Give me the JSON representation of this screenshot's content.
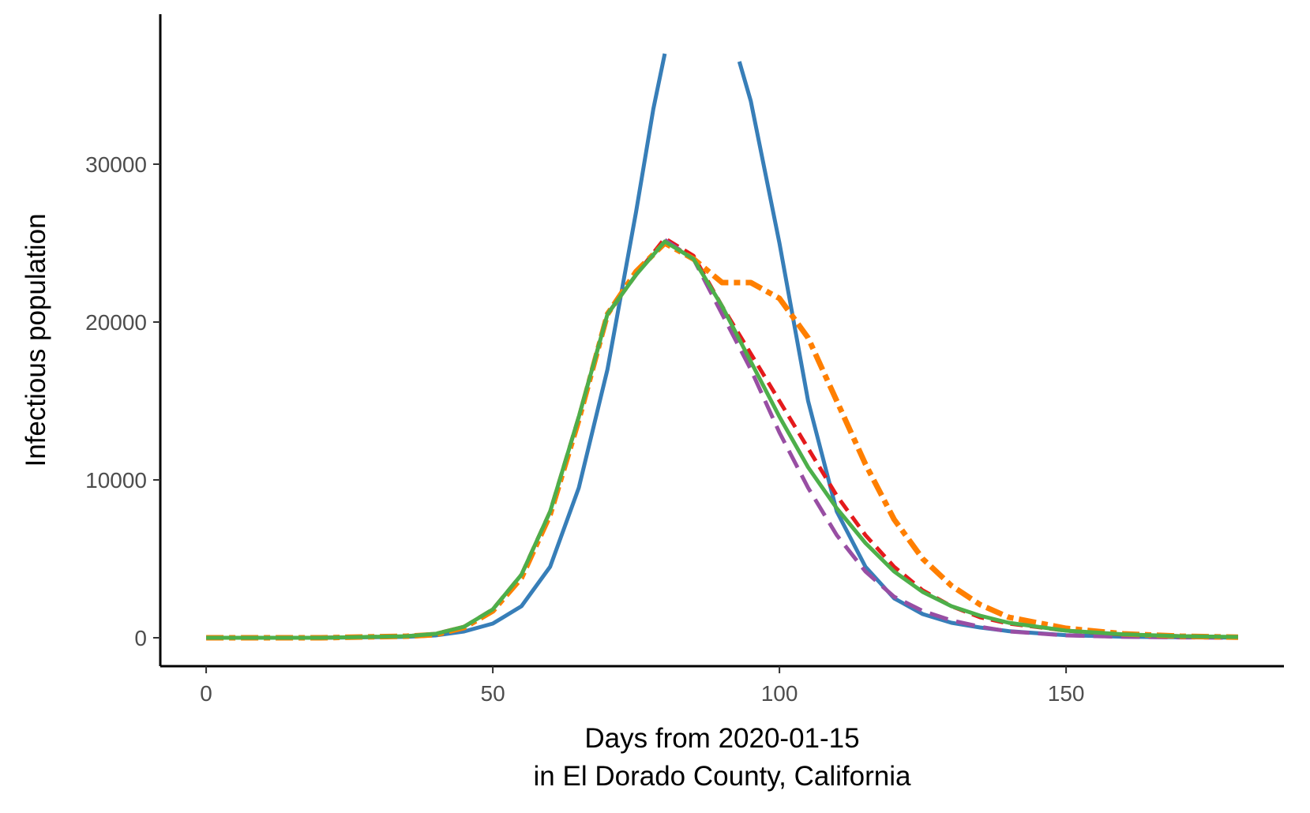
{
  "chart_data": {
    "type": "line",
    "xlabel_lines": [
      "Days from 2020-01-15",
      "in El Dorado County, California"
    ],
    "ylabel": "Infectious population",
    "xlim": [
      -8,
      188
    ],
    "ylim": [
      -1800,
      39500
    ],
    "x_ticks": [
      0,
      50,
      100,
      150
    ],
    "y_ticks": [
      0,
      10000,
      20000,
      30000
    ],
    "x_tick_labels": [
      "0",
      "50",
      "100",
      "150"
    ],
    "y_tick_labels": [
      "0",
      "10000",
      "20000",
      "30000"
    ],
    "grid": false,
    "legend": "none",
    "series": [
      {
        "color": "#377EB8",
        "dash": "solid",
        "width": 5,
        "segments": [
          [
            [
              0,
              0
            ],
            [
              20,
              0
            ],
            [
              35,
              60
            ],
            [
              40,
              150
            ],
            [
              45,
              400
            ],
            [
              50,
              900
            ],
            [
              55,
              2000
            ],
            [
              60,
              4500
            ],
            [
              65,
              9500
            ],
            [
              70,
              17000
            ],
            [
              75,
              27000
            ],
            [
              78,
              33500
            ],
            [
              80,
              37000
            ]
          ],
          [
            [
              93,
              36500
            ],
            [
              95,
              34000
            ],
            [
              100,
              25000
            ],
            [
              105,
              15000
            ],
            [
              110,
              8000
            ],
            [
              115,
              4500
            ],
            [
              120,
              2500
            ],
            [
              125,
              1500
            ],
            [
              130,
              950
            ],
            [
              135,
              650
            ],
            [
              140,
              420
            ],
            [
              150,
              160
            ],
            [
              160,
              70
            ],
            [
              170,
              30
            ],
            [
              180,
              10
            ]
          ]
        ]
      },
      {
        "color": "#E41A1C",
        "dash": "16 9",
        "width": 5,
        "segments": [
          [
            [
              0,
              0
            ],
            [
              20,
              0
            ],
            [
              35,
              100
            ],
            [
              40,
              250
            ],
            [
              45,
              700
            ],
            [
              50,
              1800
            ],
            [
              55,
              4000
            ],
            [
              60,
              8000
            ],
            [
              65,
              14000
            ],
            [
              70,
              20500
            ],
            [
              75,
              23000
            ],
            [
              80,
              25300
            ],
            [
              85,
              24200
            ],
            [
              90,
              21000
            ],
            [
              95,
              18000
            ],
            [
              100,
              15000
            ],
            [
              105,
              12000
            ],
            [
              110,
              9000
            ],
            [
              115,
              6500
            ],
            [
              120,
              4500
            ],
            [
              125,
              3000
            ],
            [
              130,
              2000
            ],
            [
              135,
              1300
            ],
            [
              140,
              900
            ],
            [
              150,
              450
            ],
            [
              160,
              200
            ],
            [
              170,
              100
            ],
            [
              180,
              40
            ]
          ]
        ]
      },
      {
        "color": "#984EA3",
        "dash": "24 11",
        "width": 5,
        "segments": [
          [
            [
              80,
              25200
            ],
            [
              85,
              24000
            ],
            [
              90,
              20500
            ],
            [
              95,
              17000
            ],
            [
              100,
              13000
            ],
            [
              105,
              9500
            ],
            [
              110,
              6500
            ],
            [
              115,
              4200
            ],
            [
              120,
              2600
            ],
            [
              125,
              1700
            ],
            [
              130,
              1100
            ],
            [
              135,
              700
            ],
            [
              140,
              400
            ],
            [
              150,
              150
            ],
            [
              160,
              60
            ],
            [
              170,
              20
            ],
            [
              180,
              5
            ]
          ]
        ]
      },
      {
        "color": "#FF7F00",
        "dash": "22 7 8 7",
        "width": 7,
        "segments": [
          [
            [
              0,
              0
            ],
            [
              20,
              0
            ],
            [
              35,
              100
            ],
            [
              40,
              200
            ],
            [
              45,
              650
            ],
            [
              50,
              1700
            ],
            [
              55,
              3800
            ],
            [
              60,
              7800
            ],
            [
              65,
              13800
            ],
            [
              70,
              20500
            ],
            [
              75,
              23200
            ],
            [
              80,
              25000
            ],
            [
              85,
              24000
            ],
            [
              90,
              22500
            ],
            [
              95,
              22500
            ],
            [
              100,
              21500
            ],
            [
              105,
              19000
            ],
            [
              110,
              15000
            ],
            [
              115,
              11000
            ],
            [
              120,
              7500
            ],
            [
              125,
              5000
            ],
            [
              130,
              3300
            ],
            [
              135,
              2100
            ],
            [
              140,
              1300
            ],
            [
              150,
              600
            ],
            [
              160,
              250
            ],
            [
              170,
              100
            ],
            [
              180,
              40
            ]
          ]
        ]
      },
      {
        "color": "#4DAF4A",
        "dash": "solid",
        "width": 5,
        "segments": [
          [
            [
              0,
              0
            ],
            [
              20,
              0
            ],
            [
              35,
              100
            ],
            [
              40,
              250
            ],
            [
              45,
              700
            ],
            [
              50,
              1800
            ],
            [
              55,
              4000
            ],
            [
              60,
              8000
            ],
            [
              65,
              14000
            ],
            [
              70,
              20500
            ],
            [
              75,
              23000
            ],
            [
              80,
              25100
            ],
            [
              85,
              24000
            ],
            [
              90,
              21000
            ],
            [
              95,
              17500
            ],
            [
              100,
              14000
            ],
            [
              105,
              10800
            ],
            [
              110,
              8200
            ],
            [
              115,
              6000
            ],
            [
              120,
              4200
            ],
            [
              125,
              2900
            ],
            [
              130,
              2000
            ],
            [
              135,
              1400
            ],
            [
              140,
              950
            ],
            [
              150,
              450
            ],
            [
              160,
              220
            ],
            [
              170,
              100
            ],
            [
              180,
              50
            ]
          ]
        ]
      }
    ]
  }
}
